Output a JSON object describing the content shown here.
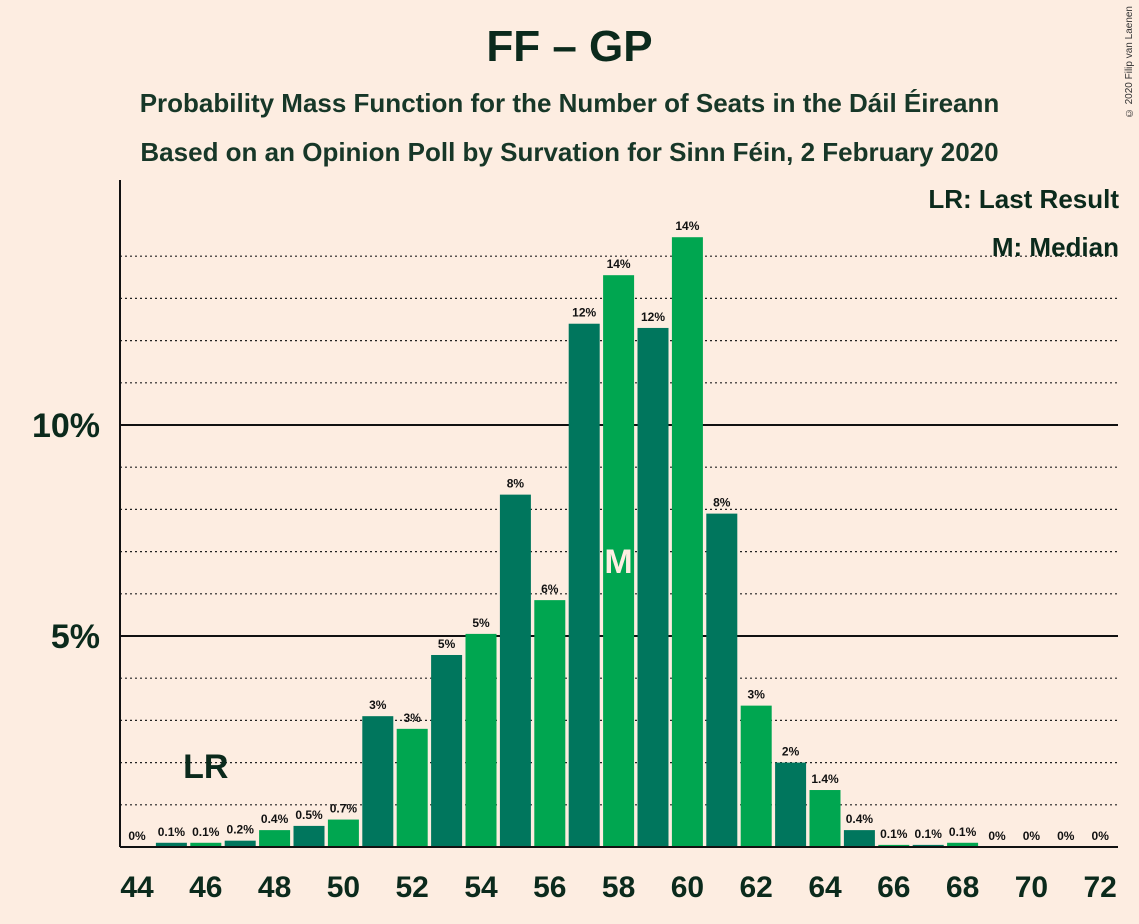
{
  "header": {
    "title": "FF – GP",
    "subtitle1": "Probability Mass Function for the Number of Seats in the Dáil Éireann",
    "subtitle2": "Based on an Opinion Poll by Survation for Sinn Féin, 2 February 2020",
    "copyright": "© 2020 Filip van Laenen"
  },
  "legend": {
    "last_result": "LR: Last Result",
    "median": "M: Median"
  },
  "colors": {
    "background": "#FDEDE1",
    "bar_dark": "#00765D",
    "bar_light": "#00A650",
    "text": "#0B2A1C"
  },
  "chart_data": {
    "type": "bar",
    "title": "FF – GP",
    "xlabel": "",
    "ylabel": "",
    "categories": [
      44,
      45,
      46,
      47,
      48,
      49,
      50,
      51,
      52,
      53,
      54,
      55,
      56,
      57,
      58,
      59,
      60,
      61,
      62,
      63,
      64,
      65,
      66,
      67,
      68,
      69,
      70,
      71,
      72
    ],
    "values": [
      0,
      0.1,
      0.1,
      0.15,
      0.4,
      0.5,
      0.65,
      3.1,
      2.8,
      4.55,
      5.05,
      8.35,
      5.85,
      12.4,
      13.55,
      12.3,
      14.45,
      7.9,
      3.35,
      2.0,
      1.35,
      0.4,
      0.05,
      0.05,
      0.1,
      0,
      0,
      0,
      0
    ],
    "data_labels": [
      "0%",
      "0.1%",
      "0.1%",
      "0.2%",
      "0.4%",
      "0.5%",
      "0.7%",
      "3%",
      "3%",
      "5%",
      "5%",
      "8%",
      "6%",
      "12%",
      "14%",
      "12%",
      "14%",
      "8%",
      "3%",
      "2%",
      "1.4%",
      "0.4%",
      "0.1%",
      "0.1%",
      "0.1%",
      "0%",
      "0%",
      "0%",
      "0%"
    ],
    "x_tick_labels": [
      "44",
      "46",
      "48",
      "50",
      "52",
      "54",
      "56",
      "58",
      "60",
      "62",
      "64",
      "66",
      "68",
      "70",
      "72"
    ],
    "y_tick_labels": [
      {
        "value": 5,
        "label": "5%"
      },
      {
        "value": 10,
        "label": "10%"
      }
    ],
    "ylim": [
      0,
      15.7
    ],
    "minor_gridlines_step": 1,
    "last_result": {
      "seat": 46,
      "label": "LR"
    },
    "median": {
      "seat": 58,
      "label": "M"
    }
  }
}
